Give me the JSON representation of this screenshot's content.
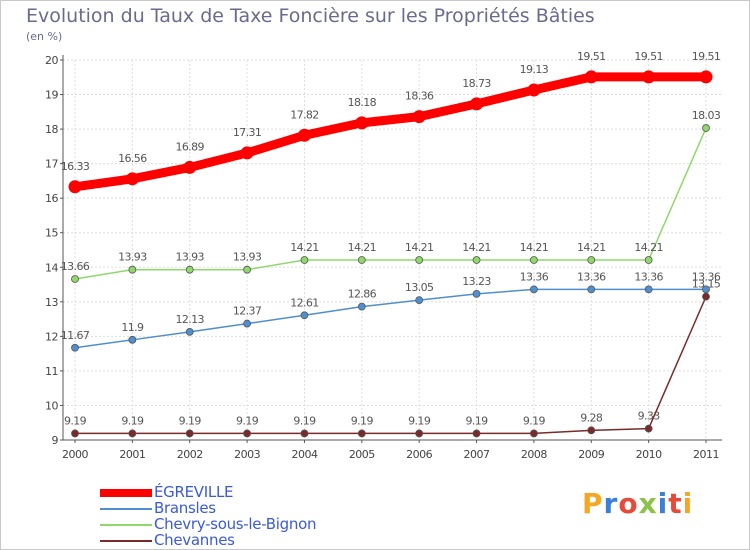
{
  "title": "Evolution du Taux de Taxe Foncière sur les Propriétés Bâties",
  "subtitle": "(en %)",
  "logo": {
    "text": "Proxiti",
    "colors": [
      "#f5a623",
      "#3a7fd8",
      "#e84a3a",
      "#8bc34a",
      "#3a7fd8",
      "#e84a3a",
      "#f5a623"
    ]
  },
  "chart_data": {
    "type": "line",
    "title": "Evolution du Taux de Taxe Foncière sur les Propriétés Bâties",
    "ylabel": "(en %)",
    "xlabel": "",
    "x": [
      "2000",
      "2001",
      "2002",
      "2003",
      "2004",
      "2005",
      "2006",
      "2007",
      "2008",
      "2009",
      "2010",
      "2011"
    ],
    "ylim": [
      9,
      20
    ],
    "yticks": [
      9,
      10,
      11,
      12,
      13,
      14,
      15,
      16,
      17,
      18,
      19,
      20
    ],
    "grid": true,
    "legend_position": "bottom-left",
    "series": [
      {
        "name": "ÉGREVILLE",
        "color": "#ff0000",
        "values": [
          16.33,
          16.56,
          16.89,
          17.31,
          17.82,
          18.18,
          18.36,
          18.73,
          19.13,
          19.51,
          19.51,
          19.51
        ]
      },
      {
        "name": "Bransles",
        "color": "#4f8fcf",
        "values": [
          11.67,
          11.9,
          12.13,
          12.37,
          12.61,
          12.86,
          13.05,
          13.23,
          13.36,
          13.36,
          13.36,
          13.36
        ]
      },
      {
        "name": "Chevry-sous-le-Bignon",
        "color": "#8fd86a",
        "values": [
          13.66,
          13.93,
          13.93,
          13.93,
          14.21,
          14.21,
          14.21,
          14.21,
          14.21,
          14.21,
          14.21,
          18.03
        ]
      },
      {
        "name": "Chevannes",
        "color": "#7a2a2a",
        "values": [
          9.19,
          9.19,
          9.19,
          9.19,
          9.19,
          9.19,
          9.19,
          9.19,
          9.19,
          9.28,
          9.33,
          13.15
        ]
      }
    ]
  }
}
